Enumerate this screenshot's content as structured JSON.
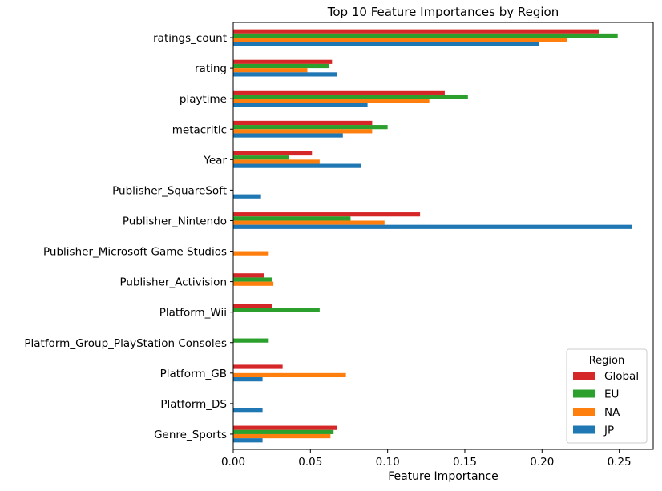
{
  "chart_data": {
    "type": "bar",
    "orientation": "horizontal",
    "title": "Top 10 Feature Importances by Region",
    "xlabel": "Feature Importance",
    "ylabel": "",
    "xlim": [
      0,
      0.272
    ],
    "xticks": [
      0.0,
      0.05,
      0.1,
      0.15,
      0.2,
      0.25
    ],
    "xtick_labels": [
      "0.00",
      "0.05",
      "0.10",
      "0.15",
      "0.20",
      "0.25"
    ],
    "categories": [
      "ratings_count",
      "rating",
      "playtime",
      "metacritic",
      "Year",
      "Publisher_SquareSoft",
      "Publisher_Nintendo",
      "Publisher_Microsoft Game Studios",
      "Publisher_Activision",
      "Platform_Wii",
      "Platform_Group_PlayStation Consoles",
      "Platform_GB",
      "Platform_DS",
      "Genre_Sports"
    ],
    "series": [
      {
        "name": "Global",
        "color": "#d62728",
        "values": [
          0.237,
          0.064,
          0.137,
          0.09,
          0.051,
          0,
          0.121,
          0,
          0.02,
          0.025,
          0,
          0.032,
          0,
          0.067
        ]
      },
      {
        "name": "EU",
        "color": "#2ca02c",
        "values": [
          0.249,
          0.062,
          0.152,
          0.1,
          0.036,
          0,
          0.076,
          0,
          0.025,
          0.056,
          0.023,
          0,
          0,
          0.065
        ]
      },
      {
        "name": "NA",
        "color": "#ff7f0e",
        "values": [
          0.216,
          0.048,
          0.127,
          0.09,
          0.056,
          0,
          0.098,
          0.023,
          0.026,
          0,
          0,
          0.073,
          0,
          0.063
        ]
      },
      {
        "name": "JP",
        "color": "#1f77b4",
        "values": [
          0.198,
          0.067,
          0.087,
          0.071,
          0.083,
          0.018,
          0.258,
          0,
          0,
          0,
          0,
          0.019,
          0.019,
          0.019
        ]
      }
    ],
    "legend": {
      "title": "Region",
      "placement": "lower-right"
    },
    "grid": false
  }
}
